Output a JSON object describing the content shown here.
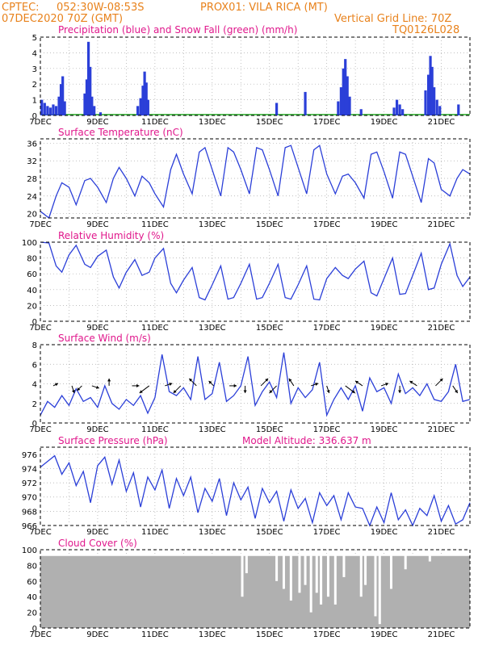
{
  "header": {
    "line1_left": "CPTEC:",
    "line1_mid": "052:30W-08:53S",
    "line1_right": "PROX01: VILA RICA (MT)",
    "line2_left": "07DEC2020 70Z (GMT)",
    "line2_right": "Vertical Grid Line: 70Z",
    "code": "TQ0126L028"
  },
  "colors": {
    "header": "#e8821c",
    "title": "#e0188c",
    "series": "#2b3fd8",
    "snow": "#22aa22",
    "cloud": "#b0b0b0"
  },
  "chart_data": [
    {
      "type": "bar",
      "title": "Precipitation (blue) and Snow Fall (green) (mm/h)",
      "x_ticks": [
        "7DEC",
        "9DEC",
        "11DEC",
        "13DEC",
        "15DEC",
        "17DEC",
        "19DEC",
        "21DEC"
      ],
      "x_range_days": [
        0,
        15
      ],
      "ylim": [
        0,
        5
      ],
      "y_ticks": [
        "0",
        "1",
        "2",
        "3",
        "4",
        "5"
      ],
      "events": [
        {
          "day": 0.05,
          "value": 1.0
        },
        {
          "day": 0.15,
          "value": 0.8
        },
        {
          "day": 0.25,
          "value": 0.6
        },
        {
          "day": 0.35,
          "value": 0.5
        },
        {
          "day": 0.45,
          "value": 0.7
        },
        {
          "day": 0.55,
          "value": 0.6
        },
        {
          "day": 0.65,
          "value": 1.2
        },
        {
          "day": 0.72,
          "value": 2.0
        },
        {
          "day": 0.78,
          "value": 2.5
        },
        {
          "day": 0.85,
          "value": 0.9
        },
        {
          "day": 1.55,
          "value": 1.4
        },
        {
          "day": 1.62,
          "value": 2.3
        },
        {
          "day": 1.68,
          "value": 4.7
        },
        {
          "day": 1.74,
          "value": 3.1
        },
        {
          "day": 1.8,
          "value": 1.2
        },
        {
          "day": 1.88,
          "value": 0.6
        },
        {
          "day": 2.1,
          "value": 0.2
        },
        {
          "day": 3.4,
          "value": 0.6
        },
        {
          "day": 3.5,
          "value": 1.1
        },
        {
          "day": 3.58,
          "value": 1.9
        },
        {
          "day": 3.64,
          "value": 2.8
        },
        {
          "day": 3.7,
          "value": 2.1
        },
        {
          "day": 3.76,
          "value": 1.0
        },
        {
          "day": 8.25,
          "value": 0.8
        },
        {
          "day": 9.25,
          "value": 1.5
        },
        {
          "day": 10.4,
          "value": 0.9
        },
        {
          "day": 10.5,
          "value": 1.8
        },
        {
          "day": 10.58,
          "value": 3.0
        },
        {
          "day": 10.65,
          "value": 3.6
        },
        {
          "day": 10.72,
          "value": 2.5
        },
        {
          "day": 10.8,
          "value": 1.2
        },
        {
          "day": 11.2,
          "value": 0.4
        },
        {
          "day": 12.35,
          "value": 0.5
        },
        {
          "day": 12.45,
          "value": 1.0
        },
        {
          "day": 12.55,
          "value": 0.7
        },
        {
          "day": 12.65,
          "value": 0.4
        },
        {
          "day": 13.45,
          "value": 1.6
        },
        {
          "day": 13.55,
          "value": 2.6
        },
        {
          "day": 13.62,
          "value": 3.8
        },
        {
          "day": 13.68,
          "value": 3.1
        },
        {
          "day": 13.75,
          "value": 1.8
        },
        {
          "day": 13.85,
          "value": 1.0
        },
        {
          "day": 13.95,
          "value": 0.6
        },
        {
          "day": 14.6,
          "value": 0.7
        }
      ]
    },
    {
      "type": "line",
      "title": "Surface Temperature (nC)",
      "ylim": [
        19,
        37
      ],
      "y_ticks": [
        "20",
        "24",
        "28",
        "32",
        "36"
      ],
      "x": [
        0,
        0.3,
        0.55,
        0.75,
        1.0,
        1.25,
        1.55,
        1.75,
        2.0,
        2.3,
        2.55,
        2.75,
        3.0,
        3.3,
        3.55,
        3.8,
        4.0,
        4.3,
        4.55,
        4.75,
        5.0,
        5.3,
        5.55,
        5.75,
        6.0,
        6.3,
        6.55,
        6.75,
        7.0,
        7.3,
        7.55,
        7.75,
        8.0,
        8.3,
        8.55,
        8.75,
        9.0,
        9.3,
        9.55,
        9.75,
        10.0,
        10.3,
        10.55,
        10.75,
        11.0,
        11.3,
        11.55,
        11.75,
        12.0,
        12.3,
        12.55,
        12.75,
        13.0,
        13.3,
        13.55,
        13.75,
        14.0,
        14.3,
        14.55,
        14.75,
        15.0
      ],
      "y": [
        20.5,
        19.0,
        24.0,
        27.0,
        26.0,
        22.0,
        27.5,
        28.0,
        26.0,
        22.5,
        28.0,
        30.5,
        28.0,
        24.0,
        28.5,
        27.0,
        24.5,
        21.5,
        30.0,
        33.5,
        29.0,
        24.5,
        34.0,
        35.0,
        30.0,
        24.0,
        35.0,
        34.0,
        30.0,
        24.5,
        35.0,
        34.5,
        30.0,
        24.0,
        35.0,
        35.5,
        30.5,
        24.5,
        34.5,
        35.5,
        29.0,
        24.5,
        28.5,
        29.0,
        27.0,
        23.5,
        33.5,
        34.0,
        29.5,
        23.5,
        34.0,
        33.5,
        28.5,
        22.5,
        32.5,
        31.5,
        25.5,
        24.0,
        28.0,
        30.0,
        29.0
      ]
    },
    {
      "type": "line",
      "title": "Relative Humidity (%)",
      "ylim": [
        0,
        100
      ],
      "y_ticks": [
        "0",
        "20",
        "40",
        "60",
        "80",
        "100"
      ],
      "x": [
        0,
        0.3,
        0.55,
        0.75,
        1.0,
        1.25,
        1.55,
        1.75,
        2.0,
        2.3,
        2.55,
        2.75,
        3.0,
        3.3,
        3.55,
        3.8,
        4.0,
        4.3,
        4.55,
        4.75,
        5.0,
        5.3,
        5.55,
        5.75,
        6.0,
        6.3,
        6.55,
        6.75,
        7.0,
        7.3,
        7.55,
        7.75,
        8.0,
        8.3,
        8.55,
        8.75,
        9.0,
        9.3,
        9.55,
        9.75,
        10.0,
        10.3,
        10.55,
        10.75,
        11.0,
        11.3,
        11.55,
        11.75,
        12.0,
        12.3,
        12.55,
        12.75,
        13.0,
        13.3,
        13.55,
        13.75,
        14.0,
        14.3,
        14.55,
        14.75,
        15.0
      ],
      "y": [
        100,
        99,
        70,
        62,
        84,
        96,
        72,
        68,
        82,
        90,
        56,
        42,
        62,
        78,
        58,
        62,
        80,
        92,
        48,
        36,
        52,
        68,
        30,
        27,
        46,
        70,
        28,
        30,
        48,
        72,
        28,
        30,
        48,
        72,
        30,
        28,
        46,
        70,
        28,
        27,
        54,
        68,
        58,
        54,
        66,
        76,
        36,
        32,
        54,
        80,
        34,
        35,
        58,
        86,
        40,
        42,
        72,
        98,
        58,
        44,
        56
      ]
    },
    {
      "type": "line",
      "title": "Surface Wind (m/s)",
      "ylim": [
        0,
        8
      ],
      "y_ticks": [
        "0",
        "2",
        "4",
        "6",
        "8"
      ],
      "x": [
        0,
        0.25,
        0.5,
        0.75,
        1.0,
        1.25,
        1.5,
        1.75,
        2.0,
        2.25,
        2.5,
        2.75,
        3.0,
        3.25,
        3.5,
        3.75,
        4.0,
        4.25,
        4.5,
        4.75,
        5.0,
        5.25,
        5.5,
        5.75,
        6.0,
        6.25,
        6.5,
        6.75,
        7.0,
        7.25,
        7.5,
        7.75,
        8.0,
        8.25,
        8.5,
        8.75,
        9.0,
        9.25,
        9.5,
        9.75,
        10.0,
        10.25,
        10.5,
        10.75,
        11.0,
        11.25,
        11.5,
        11.75,
        12.0,
        12.25,
        12.5,
        12.75,
        13.0,
        13.25,
        13.5,
        13.75,
        14.0,
        14.25,
        14.5,
        14.75,
        15.0
      ],
      "y": [
        0.8,
        2.2,
        1.6,
        2.8,
        1.8,
        3.5,
        2.2,
        2.6,
        1.6,
        3.8,
        2.0,
        1.4,
        2.4,
        1.8,
        2.8,
        1.0,
        2.6,
        7.0,
        3.2,
        2.8,
        3.6,
        2.4,
        6.8,
        2.4,
        3.0,
        6.2,
        2.2,
        2.8,
        3.8,
        6.8,
        1.8,
        3.2,
        4.2,
        2.6,
        7.2,
        2.0,
        3.6,
        2.6,
        3.4,
        6.2,
        0.8,
        2.4,
        3.6,
        2.4,
        3.8,
        1.2,
        4.6,
        3.2,
        3.6,
        2.0,
        5.0,
        3.0,
        3.6,
        2.8,
        4.0,
        2.4,
        2.2,
        3.2,
        6.0,
        2.2,
        2.4
      ],
      "vectors": [
        {
          "day": 0.45,
          "u": 2,
          "v": 1
        },
        {
          "day": 1.1,
          "u": 1,
          "v": -3
        },
        {
          "day": 1.45,
          "u": -2,
          "v": -2
        },
        {
          "day": 1.8,
          "u": 3,
          "v": -1
        },
        {
          "day": 2.4,
          "u": 0,
          "v": 3
        },
        {
          "day": 3.2,
          "u": 3,
          "v": 0
        },
        {
          "day": 3.8,
          "u": -4,
          "v": -3
        },
        {
          "day": 4.35,
          "u": 3,
          "v": 1
        },
        {
          "day": 4.9,
          "u": -3,
          "v": -3
        },
        {
          "day": 5.45,
          "u": -3,
          "v": 3
        },
        {
          "day": 6.05,
          "u": -2,
          "v": 2
        },
        {
          "day": 6.6,
          "u": 3,
          "v": 0
        },
        {
          "day": 7.15,
          "u": 0,
          "v": -3
        },
        {
          "day": 7.7,
          "u": 3,
          "v": 3
        },
        {
          "day": 8.25,
          "u": -3,
          "v": -3
        },
        {
          "day": 8.85,
          "u": -2,
          "v": 3
        },
        {
          "day": 9.45,
          "u": 3,
          "v": 1
        },
        {
          "day": 10.0,
          "u": 1,
          "v": -3
        },
        {
          "day": 10.65,
          "u": 4,
          "v": -3
        },
        {
          "day": 11.25,
          "u": -3,
          "v": 2
        },
        {
          "day": 11.9,
          "u": 3,
          "v": 1
        },
        {
          "day": 12.55,
          "u": 0,
          "v": -3
        },
        {
          "day": 13.15,
          "u": -3,
          "v": 2
        },
        {
          "day": 13.8,
          "u": 3,
          "v": 3
        },
        {
          "day": 14.4,
          "u": 2,
          "v": -3
        }
      ]
    },
    {
      "type": "line",
      "title": "Surface Pressure (hPa)",
      "annotation": "Model Altitude: 336.637 m",
      "ylim": [
        966,
        977
      ],
      "y_ticks": [
        "966",
        "968",
        "970",
        "972",
        "974",
        "976"
      ],
      "x": [
        0,
        0.25,
        0.5,
        0.75,
        1.0,
        1.25,
        1.5,
        1.75,
        2.0,
        2.25,
        2.5,
        2.75,
        3.0,
        3.25,
        3.5,
        3.75,
        4.0,
        4.25,
        4.5,
        4.75,
        5.0,
        5.25,
        5.5,
        5.75,
        6.0,
        6.25,
        6.5,
        6.75,
        7.0,
        7.25,
        7.5,
        7.75,
        8.0,
        8.25,
        8.5,
        8.75,
        9.0,
        9.25,
        9.5,
        9.75,
        10.0,
        10.25,
        10.5,
        10.75,
        11.0,
        11.25,
        11.5,
        11.75,
        12.0,
        12.25,
        12.5,
        12.75,
        13.0,
        13.25,
        13.5,
        13.75,
        14.0,
        14.25,
        14.5,
        14.75,
        15.0
      ],
      "y": [
        974.2,
        975.0,
        975.8,
        973.2,
        974.8,
        971.6,
        973.6,
        969.2,
        974.4,
        975.6,
        971.8,
        975.2,
        970.8,
        973.4,
        968.6,
        972.8,
        971.0,
        973.8,
        968.4,
        972.6,
        970.2,
        972.8,
        967.8,
        971.2,
        969.4,
        972.6,
        967.4,
        972.0,
        969.6,
        971.4,
        967.0,
        971.2,
        969.2,
        970.8,
        966.6,
        971.0,
        968.4,
        969.8,
        966.4,
        970.6,
        968.8,
        970.2,
        966.8,
        970.6,
        968.6,
        968.4,
        965.8,
        968.6,
        966.4,
        970.6,
        966.8,
        968.2,
        965.6,
        968.4,
        967.4,
        970.2,
        966.6,
        968.8,
        966.2,
        966.8,
        969.2
      ]
    },
    {
      "type": "bar",
      "title": "Cloud Cover (%)",
      "ylim": [
        0,
        100
      ],
      "y_ticks": [
        "0",
        "20",
        "40",
        "60",
        "80",
        "100"
      ],
      "dips": [
        {
          "day": 7.05,
          "value": 40
        },
        {
          "day": 7.2,
          "value": 70
        },
        {
          "day": 8.25,
          "value": 60
        },
        {
          "day": 8.5,
          "value": 50
        },
        {
          "day": 8.75,
          "value": 35
        },
        {
          "day": 9.05,
          "value": 45
        },
        {
          "day": 9.25,
          "value": 55
        },
        {
          "day": 9.45,
          "value": 20
        },
        {
          "day": 9.65,
          "value": 45
        },
        {
          "day": 9.8,
          "value": 30
        },
        {
          "day": 10.05,
          "value": 40
        },
        {
          "day": 10.3,
          "value": 30
        },
        {
          "day": 10.6,
          "value": 65
        },
        {
          "day": 11.2,
          "value": 40
        },
        {
          "day": 11.35,
          "value": 55
        },
        {
          "day": 11.7,
          "value": 15
        },
        {
          "day": 11.85,
          "value": 5
        },
        {
          "day": 12.25,
          "value": 50
        },
        {
          "day": 12.75,
          "value": 75
        },
        {
          "day": 13.6,
          "value": 85
        }
      ]
    }
  ]
}
